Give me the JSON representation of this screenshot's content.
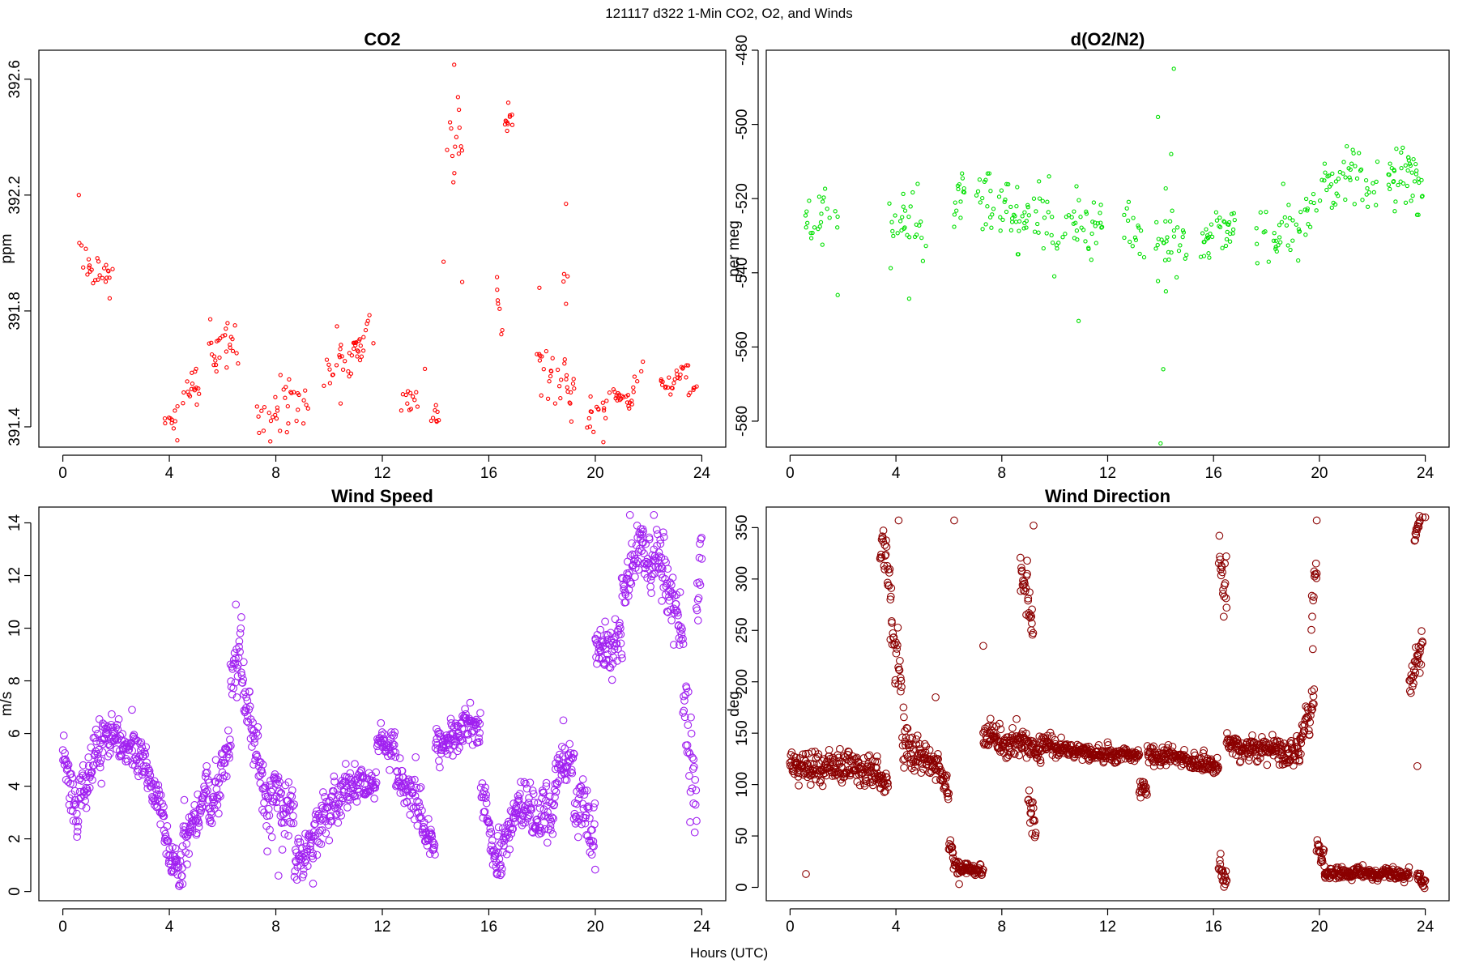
{
  "figure": {
    "suptitle": "121117   d322   1-Min CO2, O2, and Winds",
    "xlabel": "Hours (UTC)"
  },
  "chart_data": [
    {
      "id": "co2",
      "type": "scatter",
      "title": "CO2",
      "ylabel": "ppm",
      "xlim": [
        -0.9,
        24.9
      ],
      "ylim": [
        391.33,
        392.7
      ],
      "xticks": [
        0,
        4,
        8,
        12,
        16,
        20,
        24
      ],
      "yticks": [
        391.4,
        391.8,
        392.2,
        392.6
      ],
      "color": "#ff0000",
      "marker": "small-circle",
      "segments": [
        [
          0.6,
          1.9,
          392.0,
          391.9,
          0.09
        ],
        [
          3.8,
          4.3,
          391.45,
          391.4,
          0.06
        ],
        [
          4.3,
          5.2,
          391.45,
          391.55,
          0.08
        ],
        [
          5.4,
          6.6,
          391.65,
          391.72,
          0.1
        ],
        [
          7.3,
          9.3,
          391.42,
          391.5,
          0.1
        ],
        [
          9.8,
          11.7,
          391.58,
          391.68,
          0.09
        ],
        [
          12.7,
          13.5,
          391.45,
          391.5,
          0.08
        ],
        [
          13.8,
          14.3,
          391.45,
          391.42,
          0.08
        ],
        [
          14.4,
          15.1,
          392.4,
          392.3,
          0.15
        ],
        [
          16.3,
          16.5,
          391.85,
          391.7,
          0.1
        ],
        [
          16.6,
          16.9,
          392.45,
          392.45,
          0.06
        ],
        [
          17.8,
          19.2,
          391.65,
          391.5,
          0.1
        ],
        [
          18.8,
          19.0,
          391.85,
          391.8,
          0.08
        ],
        [
          19.5,
          20.4,
          391.42,
          391.45,
          0.08
        ],
        [
          20.4,
          21.4,
          391.52,
          391.48,
          0.03
        ],
        [
          21.4,
          21.8,
          391.52,
          391.62,
          0.03
        ],
        [
          22.4,
          23.5,
          391.52,
          391.6,
          0.03
        ],
        [
          23.5,
          23.8,
          391.52,
          391.55,
          0.03
        ]
      ],
      "outliers": [
        [
          0.6,
          392.2
        ],
        [
          14.7,
          392.65
        ],
        [
          15.0,
          391.9
        ],
        [
          14.3,
          391.97
        ],
        [
          17.9,
          391.88
        ],
        [
          18.9,
          392.17
        ],
        [
          13.6,
          391.6
        ]
      ]
    },
    {
      "id": "o2",
      "type": "scatter",
      "title": "d(O2/N2)",
      "ylabel": "per meg",
      "xlim": [
        -0.9,
        24.9
      ],
      "ylim": [
        -587,
        -480
      ],
      "xticks": [
        0,
        4,
        8,
        12,
        16,
        20,
        24
      ],
      "yticks": [
        -480,
        -500,
        -520,
        -540,
        -560,
        -580
      ],
      "color": "#00e000",
      "marker": "small-circle",
      "segments": [
        [
          0.5,
          1.8,
          -527,
          -524,
          8
        ],
        [
          3.7,
          5.2,
          -528,
          -528,
          10
        ],
        [
          6.2,
          6.6,
          -520,
          -518,
          7
        ],
        [
          7.0,
          8.6,
          -520,
          -523,
          8
        ],
        [
          8.6,
          11.8,
          -526,
          -528,
          9
        ],
        [
          12.6,
          13.4,
          -528,
          -530,
          7
        ],
        [
          13.8,
          15.0,
          -530,
          -534,
          10
        ],
        [
          15.5,
          16.8,
          -532,
          -528,
          6
        ],
        [
          17.6,
          19.5,
          -530,
          -528,
          8
        ],
        [
          19.5,
          21.5,
          -520,
          -512,
          7
        ],
        [
          21.5,
          22.2,
          -516,
          -516,
          6
        ],
        [
          22.6,
          23.9,
          -514,
          -517,
          8
        ]
      ],
      "outliers": [
        [
          14.0,
          -586
        ],
        [
          14.1,
          -566
        ],
        [
          14.2,
          -545
        ],
        [
          14.5,
          -485
        ],
        [
          10.9,
          -553
        ],
        [
          1.8,
          -546
        ],
        [
          4.5,
          -547
        ],
        [
          14.4,
          -508
        ],
        [
          13.9,
          -498
        ]
      ]
    },
    {
      "id": "wspd",
      "type": "scatter",
      "title": "Wind Speed",
      "ylabel": "m/s",
      "xlim": [
        -0.9,
        24.9
      ],
      "ylim": [
        -0.35,
        14.6
      ],
      "xticks": [
        0,
        4,
        8,
        12,
        16,
        20,
        24
      ],
      "yticks": [
        0,
        2,
        4,
        6,
        8,
        10,
        12,
        14
      ],
      "color": "#a020f0",
      "marker": "circle",
      "segments": [
        [
          0.0,
          0.6,
          5.2,
          2.5,
          1.0
        ],
        [
          0.6,
          1.5,
          3.5,
          5.5,
          1.0
        ],
        [
          1.5,
          3.0,
          5.8,
          5.2,
          0.7
        ],
        [
          3.0,
          3.8,
          5.0,
          3.0,
          0.7
        ],
        [
          3.8,
          4.5,
          2.0,
          0.6,
          0.6
        ],
        [
          4.5,
          5.5,
          2.0,
          4.0,
          1.0
        ],
        [
          5.5,
          6.3,
          3.0,
          5.5,
          1.2
        ],
        [
          6.3,
          6.7,
          8.0,
          9.5,
          0.9
        ],
        [
          6.7,
          7.5,
          8.5,
          4.0,
          1.0
        ],
        [
          7.5,
          8.7,
          3.5,
          3.0,
          1.2
        ],
        [
          8.7,
          9.5,
          1.0,
          2.0,
          0.8
        ],
        [
          9.5,
          10.5,
          2.5,
          3.5,
          0.9
        ],
        [
          10.5,
          11.8,
          4.0,
          4.0,
          0.7
        ],
        [
          11.8,
          12.5,
          5.8,
          5.5,
          0.6
        ],
        [
          12.5,
          13.5,
          4.5,
          3.0,
          0.9
        ],
        [
          13.5,
          14.0,
          2.5,
          1.5,
          0.6
        ],
        [
          14.0,
          15.0,
          5.5,
          6.0,
          0.7
        ],
        [
          15.0,
          15.7,
          6.5,
          6.2,
          0.7
        ],
        [
          15.7,
          16.3,
          4.0,
          1.0,
          1.0
        ],
        [
          16.3,
          17.0,
          1.0,
          3.0,
          0.9
        ],
        [
          17.0,
          18.5,
          3.0,
          3.0,
          1.0
        ],
        [
          18.5,
          19.2,
          4.5,
          5.0,
          0.9
        ],
        [
          19.2,
          20.0,
          3.5,
          2.0,
          1.2
        ],
        [
          20.0,
          21.0,
          9.0,
          9.5,
          0.8
        ],
        [
          21.0,
          21.8,
          11.5,
          13.5,
          0.9
        ],
        [
          21.8,
          22.5,
          12.5,
          12.5,
          1.0
        ],
        [
          22.5,
          23.3,
          12.5,
          9.5,
          1.2
        ],
        [
          23.3,
          23.8,
          8.0,
          3.0,
          2.5
        ],
        [
          23.8,
          24.0,
          11.0,
          13.0,
          1.2
        ]
      ],
      "outliers": [
        [
          6.5,
          10.9
        ],
        [
          21.3,
          14.3
        ],
        [
          22.2,
          14.3
        ],
        [
          2.6,
          6.9
        ],
        [
          18.8,
          6.5
        ],
        [
          8.1,
          0.6
        ],
        [
          9.4,
          0.3
        ]
      ]
    },
    {
      "id": "wdir",
      "type": "scatter",
      "title": "Wind Direction",
      "ylabel": "deg",
      "xlim": [
        -0.9,
        24.9
      ],
      "ylim": [
        -13,
        370
      ],
      "xticks": [
        0,
        4,
        8,
        12,
        16,
        20,
        24
      ],
      "yticks": [
        0,
        50,
        100,
        150,
        200,
        250,
        300,
        350
      ],
      "color": "#8b0000",
      "marker": "circle",
      "segments": [
        [
          0.0,
          3.3,
          118,
          115,
          14
        ],
        [
          3.3,
          3.7,
          110,
          100,
          10
        ],
        [
          3.4,
          3.8,
          330,
          300,
          22
        ],
        [
          3.8,
          4.3,
          270,
          160,
          40
        ],
        [
          4.3,
          5.5,
          135,
          118,
          16
        ],
        [
          5.5,
          6.0,
          118,
          90,
          12
        ],
        [
          6.0,
          6.4,
          40,
          15,
          10
        ],
        [
          6.4,
          7.3,
          20,
          15,
          6
        ],
        [
          7.3,
          9.5,
          148,
          135,
          14
        ],
        [
          8.7,
          9.2,
          320,
          260,
          30
        ],
        [
          9.0,
          9.3,
          90,
          40,
          20
        ],
        [
          9.5,
          11.5,
          140,
          128,
          8
        ],
        [
          11.5,
          13.2,
          130,
          128,
          7
        ],
        [
          13.2,
          13.5,
          100,
          90,
          10
        ],
        [
          13.5,
          16.2,
          130,
          118,
          8
        ],
        [
          16.2,
          16.5,
          320,
          280,
          30
        ],
        [
          16.2,
          16.5,
          20,
          10,
          12
        ],
        [
          16.5,
          19.3,
          140,
          130,
          12
        ],
        [
          19.3,
          19.8,
          150,
          180,
          18
        ],
        [
          19.7,
          19.9,
          250,
          300,
          30
        ],
        [
          19.9,
          20.2,
          40,
          20,
          10
        ],
        [
          20.2,
          23.4,
          15,
          12,
          5
        ],
        [
          23.4,
          23.9,
          200,
          230,
          20
        ],
        [
          23.6,
          23.8,
          340,
          355,
          8
        ],
        [
          23.7,
          24.0,
          10,
          5,
          5
        ]
      ],
      "outliers": [
        [
          0.6,
          13
        ],
        [
          4.1,
          357
        ],
        [
          6.2,
          357
        ],
        [
          9.2,
          352
        ],
        [
          5.5,
          185
        ],
        [
          7.3,
          235
        ],
        [
          23.9,
          360
        ],
        [
          24.0,
          360
        ],
        [
          19.9,
          357
        ],
        [
          23.7,
          118
        ]
      ]
    }
  ]
}
